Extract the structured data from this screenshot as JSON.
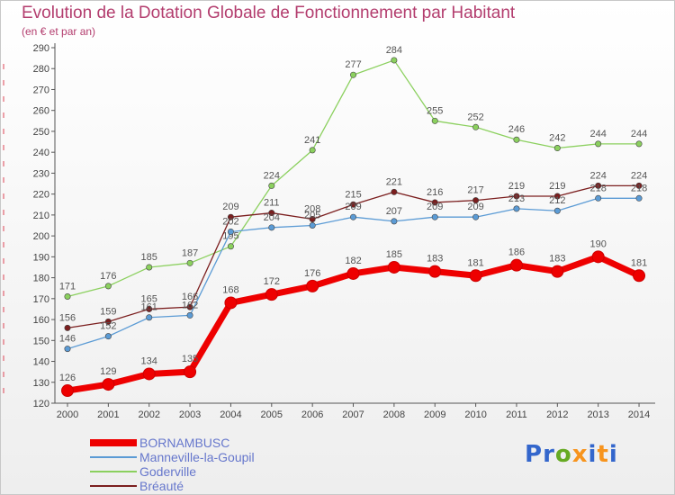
{
  "title": "Evolution de la Dotation Globale de Fonctionnement par Habitant",
  "subtitle": "(en € et par an)",
  "logo": {
    "text": "Proxiti",
    "letter_colors": [
      "#3366cc",
      "#3366cc",
      "#66aa22",
      "#f7941d",
      "#3366cc",
      "#f7941d",
      "#3366cc"
    ]
  },
  "chart_data": {
    "type": "line",
    "x": [
      2000,
      2001,
      2002,
      2003,
      2004,
      2005,
      2006,
      2007,
      2008,
      2009,
      2010,
      2011,
      2012,
      2013,
      2014
    ],
    "ylim": [
      120,
      290
    ],
    "yticks": [
      120,
      130,
      140,
      150,
      160,
      170,
      180,
      190,
      200,
      210,
      220,
      230,
      240,
      250,
      260,
      270,
      280,
      290
    ],
    "grid": false,
    "legend_placement": "bottom-left",
    "series": [
      {
        "name": "BORNAMBUSC",
        "color": "#ee0000",
        "values": [
          126,
          129,
          134,
          135,
          168,
          172,
          176,
          182,
          185,
          183,
          181,
          186,
          183,
          190,
          181
        ]
      },
      {
        "name": "Manneville-la-Goupil",
        "color": "#5b9bd5",
        "values": [
          146,
          152,
          161,
          162,
          202,
          204,
          205,
          209,
          207,
          209,
          209,
          213,
          212,
          218,
          218
        ]
      },
      {
        "name": "Goderville",
        "color": "#8bd05e",
        "values": [
          171,
          176,
          185,
          187,
          195,
          224,
          241,
          277,
          284,
          255,
          252,
          246,
          242,
          244,
          244
        ]
      },
      {
        "name": "Bréauté",
        "color": "#7b1e1e",
        "values": [
          156,
          159,
          165,
          166,
          209,
          211,
          208,
          215,
          221,
          216,
          217,
          219,
          219,
          224,
          224
        ]
      }
    ]
  }
}
